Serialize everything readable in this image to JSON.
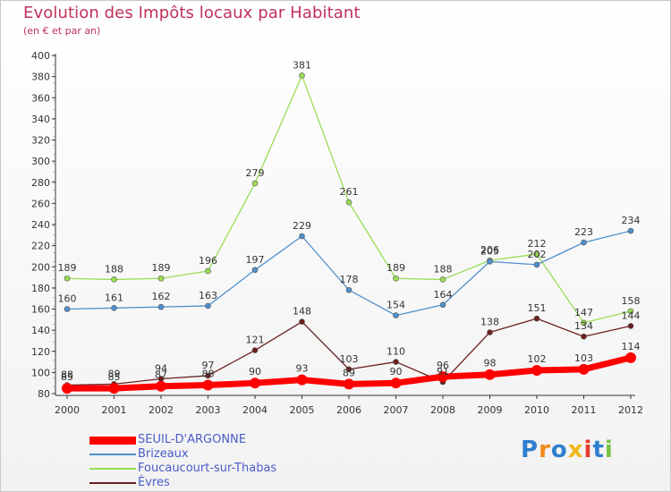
{
  "chart_data": {
    "type": "line",
    "title": "Evolution des Impôts locaux par Habitant",
    "subtitle": "(en € et par an)",
    "xlabel": "",
    "ylabel": "",
    "categories": [
      "2000",
      "2001",
      "2002",
      "2003",
      "2004",
      "2005",
      "2006",
      "2007",
      "2008",
      "2009",
      "2010",
      "2011",
      "2012"
    ],
    "ylim": [
      80,
      400
    ],
    "yticks": [
      80,
      100,
      120,
      140,
      160,
      180,
      200,
      220,
      240,
      260,
      280,
      300,
      320,
      340,
      360,
      380,
      400
    ],
    "grid": false,
    "legend_position": "bottom-left",
    "series": [
      {
        "name": "SEUIL-D'ARGONNE",
        "color": "#ff0000",
        "values": [
          85,
          85,
          87,
          88,
          90,
          93,
          89,
          90,
          96,
          98,
          102,
          103,
          114
        ]
      },
      {
        "name": "Brizeaux",
        "color": "#4f8fcc",
        "values": [
          160,
          161,
          162,
          163,
          197,
          229,
          178,
          154,
          164,
          205,
          202,
          223,
          234
        ]
      },
      {
        "name": "Foucaucourt-sur-Thabas",
        "color": "#99dd55",
        "values": [
          189,
          188,
          189,
          196,
          279,
          381,
          261,
          189,
          188,
          206,
          212,
          147,
          158
        ]
      },
      {
        "name": "Èvres",
        "color": "#6b1f1f",
        "values": [
          88,
          89,
          94,
          97,
          121,
          148,
          103,
          110,
          91,
          138,
          151,
          134,
          144
        ]
      }
    ],
    "data_labels": {
      "SEUIL-D'ARGONNE": [
        "85",
        "85",
        "87",
        "88",
        "90",
        "93",
        "89",
        "90",
        "96",
        "98",
        "102",
        "103",
        "114"
      ],
      "Brizeaux": [
        "160",
        "161",
        "162",
        "163",
        "197",
        "229",
        "178",
        "154",
        "164",
        "205",
        "202",
        "223",
        "234"
      ],
      "Foucaucourt-sur-Thabas": [
        "189",
        "188",
        "189",
        "196",
        "279",
        "381",
        "261",
        "189",
        "188",
        "206",
        "212",
        "147",
        "158"
      ],
      "Èvres": [
        "88",
        "89",
        "94",
        "97",
        "121",
        "148",
        "103",
        "110",
        "91",
        "138",
        "151",
        "134",
        "144"
      ]
    }
  },
  "logo": {
    "letters": [
      "P",
      "r",
      "o",
      "x",
      "i",
      "t",
      "i"
    ],
    "colors": [
      "#2f7fd0",
      "#f08a1a",
      "#2f7fd0",
      "#f0b81a",
      "#e83a2a",
      "#2f7fd0",
      "#7ac142"
    ]
  }
}
